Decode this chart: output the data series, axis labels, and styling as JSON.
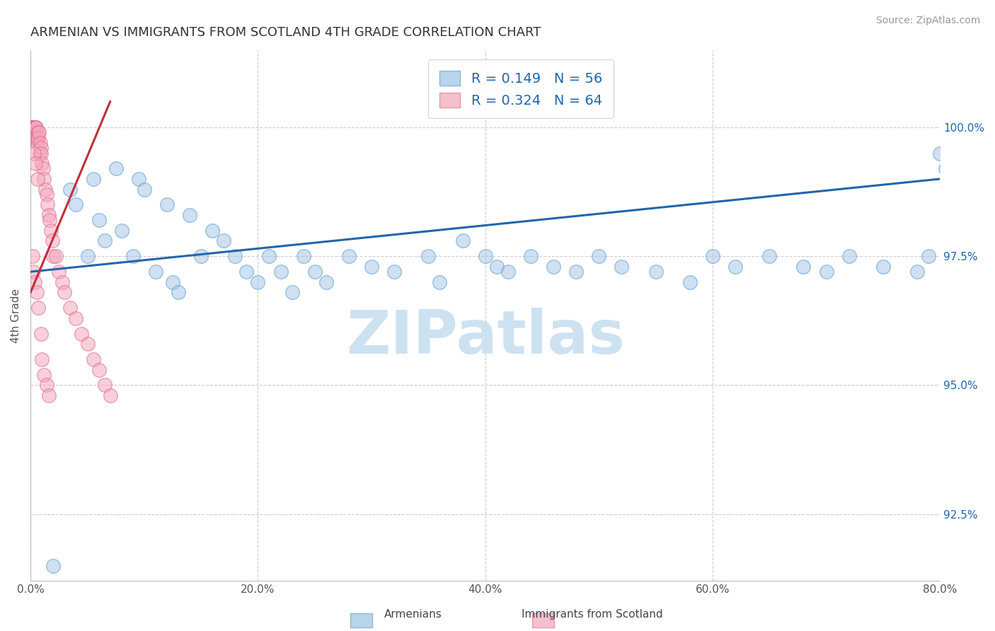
{
  "title": "ARMENIAN VS IMMIGRANTS FROM SCOTLAND 4TH GRADE CORRELATION CHART",
  "source_text": "Source: ZipAtlas.com",
  "ylabel": "4th Grade",
  "x_tick_labels": [
    "0.0%",
    "20.0%",
    "40.0%",
    "60.0%",
    "80.0%"
  ],
  "x_tick_positions": [
    0.0,
    20.0,
    40.0,
    60.0,
    80.0
  ],
  "y_tick_labels": [
    "92.5%",
    "95.0%",
    "97.5%",
    "100.0%"
  ],
  "y_tick_positions": [
    92.5,
    95.0,
    97.5,
    100.0
  ],
  "xlim": [
    0.0,
    80.0
  ],
  "ylim": [
    91.2,
    101.5
  ],
  "legend_labels": [
    "Armenians",
    "Immigrants from Scotland"
  ],
  "legend_R": [
    0.149,
    0.324
  ],
  "legend_N": [
    56,
    64
  ],
  "blue_color": "#a8c8e8",
  "pink_color": "#f4a8bc",
  "blue_line_color": "#2166ac",
  "pink_line_color": "#c0303a",
  "title_color": "#333333",
  "source_color": "#999999",
  "watermark_text": "ZIPatlas",
  "watermark_color": "#c8dff0",
  "blue_scatter_x": [
    2.0,
    3.5,
    4.0,
    5.0,
    5.5,
    6.0,
    6.5,
    7.5,
    8.0,
    9.0,
    9.5,
    10.0,
    11.0,
    12.0,
    12.5,
    13.0,
    14.0,
    15.0,
    16.0,
    17.0,
    18.0,
    19.0,
    20.0,
    21.0,
    22.0,
    23.0,
    24.0,
    25.0,
    26.0,
    28.0,
    30.0,
    32.0,
    35.0,
    36.0,
    38.0,
    40.0,
    41.0,
    42.0,
    44.0,
    46.0,
    48.0,
    50.0,
    52.0,
    55.0,
    58.0,
    60.0,
    62.0,
    65.0,
    68.0,
    70.0,
    72.0,
    75.0,
    78.0,
    79.0,
    80.0,
    80.5
  ],
  "blue_scatter_y": [
    91.5,
    98.8,
    98.5,
    97.5,
    99.0,
    98.2,
    97.8,
    99.2,
    98.0,
    97.5,
    99.0,
    98.8,
    97.2,
    98.5,
    97.0,
    96.8,
    98.3,
    97.5,
    98.0,
    97.8,
    97.5,
    97.2,
    97.0,
    97.5,
    97.2,
    96.8,
    97.5,
    97.2,
    97.0,
    97.5,
    97.3,
    97.2,
    97.5,
    97.0,
    97.8,
    97.5,
    97.3,
    97.2,
    97.5,
    97.3,
    97.2,
    97.5,
    97.3,
    97.2,
    97.0,
    97.5,
    97.3,
    97.5,
    97.3,
    97.2,
    97.5,
    97.3,
    97.2,
    97.5,
    99.5,
    99.2
  ],
  "pink_scatter_x": [
    0.05,
    0.08,
    0.1,
    0.12,
    0.15,
    0.18,
    0.2,
    0.22,
    0.25,
    0.28,
    0.3,
    0.32,
    0.35,
    0.38,
    0.4,
    0.42,
    0.45,
    0.48,
    0.5,
    0.55,
    0.6,
    0.65,
    0.7,
    0.75,
    0.8,
    0.85,
    0.9,
    0.95,
    1.0,
    1.1,
    1.2,
    1.3,
    1.4,
    1.5,
    1.6,
    1.7,
    1.8,
    1.9,
    2.0,
    2.2,
    2.5,
    2.8,
    3.0,
    3.5,
    4.0,
    4.5,
    5.0,
    5.5,
    6.0,
    6.5,
    7.0,
    0.3,
    0.45,
    0.6,
    0.15,
    0.25,
    0.35,
    0.55,
    0.7,
    0.9,
    1.0,
    1.2,
    1.4,
    1.6
  ],
  "pink_scatter_y": [
    100.0,
    100.0,
    99.9,
    100.0,
    100.0,
    100.0,
    100.0,
    99.8,
    100.0,
    100.0,
    100.0,
    100.0,
    99.9,
    100.0,
    99.8,
    100.0,
    100.0,
    99.9,
    100.0,
    99.8,
    99.7,
    99.9,
    99.8,
    99.9,
    99.5,
    99.7,
    99.6,
    99.5,
    99.3,
    99.2,
    99.0,
    98.8,
    98.7,
    98.5,
    98.3,
    98.2,
    98.0,
    97.8,
    97.5,
    97.5,
    97.2,
    97.0,
    96.8,
    96.5,
    96.3,
    96.0,
    95.8,
    95.5,
    95.3,
    95.0,
    94.8,
    99.5,
    99.3,
    99.0,
    97.5,
    97.2,
    97.0,
    96.8,
    96.5,
    96.0,
    95.5,
    95.2,
    95.0,
    94.8
  ],
  "blue_trendline_x": [
    0.0,
    80.0
  ],
  "blue_trendline_y": [
    97.2,
    99.0
  ],
  "pink_trendline_x": [
    0.0,
    7.0
  ],
  "pink_trendline_y": [
    96.8,
    100.5
  ]
}
